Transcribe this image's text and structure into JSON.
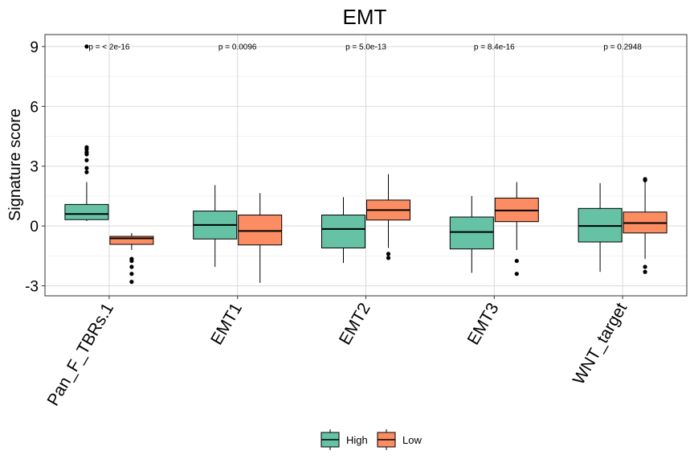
{
  "chart_data": {
    "type": "boxplot",
    "title": "EMT",
    "ylabel": "Signature score",
    "xlabel": "",
    "ylim": [
      -3.5,
      9.6
    ],
    "yticks": [
      -3,
      0,
      3,
      6,
      9
    ],
    "ytick_labels": [
      "-3",
      "0",
      "3",
      "6",
      "9"
    ],
    "grid": true,
    "legend_position": "bottom",
    "colors": {
      "High": "#66c2a5",
      "Low": "#fc8d62"
    },
    "series": [
      {
        "name": "High"
      },
      {
        "name": "Low"
      }
    ],
    "categories": [
      {
        "label": "Pan_F_TBRs.1",
        "pvalue": "p = < 2e-16",
        "boxes": [
          {
            "group": "High",
            "whisker_low": 0.25,
            "q1": 0.32,
            "median": 0.6,
            "q3": 1.08,
            "whisker_high": 2.2,
            "outliers": [
              2.7,
              2.9,
              3.3,
              3.6,
              3.7,
              3.85,
              3.95,
              9.0
            ]
          },
          {
            "group": "Low",
            "whisker_low": -1.2,
            "q1": -0.92,
            "median": -0.62,
            "q3": -0.52,
            "whisker_high": -0.35,
            "outliers": [
              -1.65,
              -1.75,
              -2.05,
              -2.4,
              -2.8
            ]
          }
        ]
      },
      {
        "label": "EMT1",
        "pvalue": "p = 0.0096",
        "boxes": [
          {
            "group": "High",
            "whisker_low": -2.05,
            "q1": -0.65,
            "median": 0.05,
            "q3": 0.75,
            "whisker_high": 2.05,
            "outliers": []
          },
          {
            "group": "Low",
            "whisker_low": -2.85,
            "q1": -0.95,
            "median": -0.25,
            "q3": 0.55,
            "whisker_high": 1.65,
            "outliers": []
          }
        ]
      },
      {
        "label": "EMT2",
        "pvalue": "p = 5.0e-13",
        "boxes": [
          {
            "group": "High",
            "whisker_low": -1.85,
            "q1": -1.1,
            "median": -0.15,
            "q3": 0.55,
            "whisker_high": 1.45,
            "outliers": []
          },
          {
            "group": "Low",
            "whisker_low": -1.1,
            "q1": 0.3,
            "median": 0.8,
            "q3": 1.3,
            "whisker_high": 2.6,
            "outliers": [
              -1.4,
              -1.6
            ]
          }
        ]
      },
      {
        "label": "EMT3",
        "pvalue": "p = 8.4e-16",
        "boxes": [
          {
            "group": "High",
            "whisker_low": -2.35,
            "q1": -1.15,
            "median": -0.3,
            "q3": 0.45,
            "whisker_high": 1.5,
            "outliers": []
          },
          {
            "group": "Low",
            "whisker_low": -1.2,
            "q1": 0.22,
            "median": 0.78,
            "q3": 1.4,
            "whisker_high": 2.2,
            "outliers": [
              -1.75,
              -2.4
            ]
          }
        ]
      },
      {
        "label": "WNT_target",
        "pvalue": "p = 0.2948",
        "boxes": [
          {
            "group": "High",
            "whisker_low": -2.3,
            "q1": -0.8,
            "median": 0.0,
            "q3": 0.88,
            "whisker_high": 2.15,
            "outliers": []
          },
          {
            "group": "Low",
            "whisker_low": -1.65,
            "q1": -0.35,
            "median": 0.15,
            "q3": 0.7,
            "whisker_high": 2.25,
            "outliers": [
              2.3,
              2.35,
              -2.05,
              -2.3
            ]
          }
        ]
      }
    ]
  }
}
